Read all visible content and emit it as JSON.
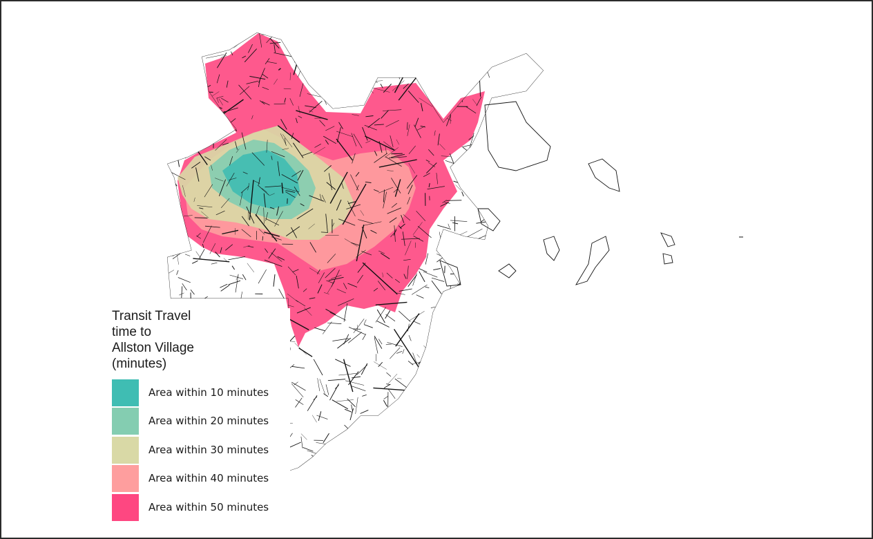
{
  "legend": {
    "title": "Transit Travel\ntime to\nAllston Village\n(minutes)",
    "items": [
      {
        "label": "Area within 10 minutes",
        "color": "#3fbdb3"
      },
      {
        "label": "Area within 20 minutes",
        "color": "#84cdb1"
      },
      {
        "label": "Area within 30 minutes",
        "color": "#d9d9a6"
      },
      {
        "label": "Area within 40 minutes",
        "color": "#fe9e9e"
      },
      {
        "label": "Area within 50 minutes",
        "color": "#fe4781"
      }
    ]
  },
  "map": {
    "street_color": "#111111",
    "background": "#ffffff"
  }
}
